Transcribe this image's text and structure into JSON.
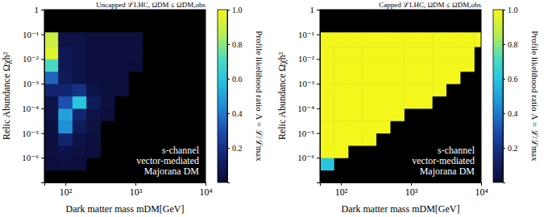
{
  "chart_data": [
    {
      "type": "heatmap",
      "title": "Uncapped ℒLHC, ΩDM ≤ ΩDM,obs",
      "x_label": "Dark matter mass mDM[GeV]",
      "y_label": "Relic Abundance Ωχh²",
      "annotation": [
        "s-channel",
        "vector-mediated",
        "Majorana DM"
      ],
      "log": true,
      "xlim": [
        50,
        10000
      ],
      "ylim": [
        1e-07,
        1
      ],
      "xticks": [
        {
          "value": 100,
          "label": "10²"
        },
        {
          "value": 1000,
          "label": "10³"
        },
        {
          "value": 10000,
          "label": "10⁴"
        }
      ],
      "yticks": [
        {
          "value": 1e-06,
          "label": "10⁻⁶"
        },
        {
          "value": 1e-05,
          "label": "10⁻⁵"
        },
        {
          "value": 0.0001,
          "label": "10⁻⁴"
        },
        {
          "value": 0.001,
          "label": "10⁻³"
        },
        {
          "value": 0.01,
          "label": "10⁻²"
        },
        {
          "value": 0.1,
          "label": "10⁻¹"
        },
        1
      ],
      "x_bins": [
        50,
        79,
        126,
        200,
        316,
        501,
        794,
        1259,
        1995,
        3162,
        5012,
        7943,
        10000
      ],
      "y_bins": [
        1e-07,
        3.16e-07,
        1e-06,
        3.16e-06,
        1e-05,
        3.16e-05,
        0.0001,
        0.000316,
        0.001,
        0.00316,
        0.01,
        0.0316,
        0.12
      ],
      "z": [
        [
          null,
          null,
          null,
          null,
          null,
          null,
          null,
          null,
          null,
          null,
          null,
          null
        ],
        [
          0.02,
          0.03,
          0.02,
          null,
          null,
          null,
          null,
          null,
          null,
          null,
          null,
          null
        ],
        [
          0.03,
          0.05,
          0.03,
          0.02,
          null,
          null,
          null,
          null,
          null,
          null,
          null,
          null
        ],
        [
          0.03,
          0.15,
          0.05,
          0.03,
          null,
          null,
          null,
          null,
          null,
          null,
          null,
          null
        ],
        [
          0.03,
          0.45,
          0.1,
          0.04,
          null,
          null,
          null,
          null,
          null,
          null,
          null,
          null
        ],
        [
          0.05,
          0.5,
          0.15,
          0.05,
          0.02,
          null,
          null,
          null,
          null,
          null,
          null,
          null
        ],
        [
          0.05,
          0.3,
          0.6,
          0.1,
          0.03,
          null,
          null,
          null,
          null,
          null,
          null,
          null
        ],
        [
          0.15,
          0.15,
          0.2,
          0.05,
          0.03,
          0.02,
          null,
          null,
          null,
          null,
          null,
          null
        ],
        [
          0.35,
          0.1,
          0.05,
          0.03,
          0.03,
          0.02,
          null,
          null,
          null,
          null,
          null,
          null
        ],
        [
          0.7,
          0.08,
          0.05,
          0.03,
          0.03,
          0.03,
          0.02,
          null,
          null,
          null,
          null,
          null
        ],
        [
          0.95,
          0.08,
          0.05,
          0.03,
          0.03,
          0.03,
          0.03,
          null,
          null,
          null,
          null,
          null
        ],
        [
          0.9,
          0.05,
          0.05,
          0.03,
          0.03,
          0.03,
          0.03,
          null,
          null,
          null,
          null,
          null
        ]
      ],
      "colorbar": {
        "label": "Profile likelihood ratio Λ = ℒ/ℒmax",
        "range": [
          0,
          1
        ],
        "ticks": [
          0.2,
          0.4,
          0.6,
          0.8,
          {
            "value": 1,
            "label": "1.0"
          }
        ]
      }
    },
    {
      "type": "heatmap",
      "title": "Capped ℒLHC, ΩDM ≤ ΩDM,obs",
      "x_label": "Dark matter mass mDM[GeV]",
      "y_label": "Relic Abundance Ωχh²",
      "annotation": [
        "s-channel",
        "vector-mediated",
        "Majorana DM"
      ],
      "log": true,
      "xlim": [
        50,
        10000
      ],
      "ylim": [
        1e-07,
        1
      ],
      "xticks": [
        {
          "value": 100,
          "label": "10²"
        },
        {
          "value": 1000,
          "label": "10³"
        },
        {
          "value": 10000,
          "label": "10⁴"
        }
      ],
      "yticks": [
        {
          "value": 1e-06,
          "label": "10⁻⁶"
        },
        {
          "value": 1e-05,
          "label": "10⁻⁵"
        },
        {
          "value": 0.0001,
          "label": "10⁻⁴"
        },
        {
          "value": 0.001,
          "label": "10⁻³"
        },
        {
          "value": 0.01,
          "label": "10⁻²"
        },
        {
          "value": 0.1,
          "label": "10⁻¹"
        },
        1
      ],
      "x_bins": [
        50,
        79,
        126,
        200,
        316,
        501,
        794,
        1259,
        1995,
        3162,
        5012,
        7943,
        10000
      ],
      "y_bins": [
        1e-07,
        3.16e-07,
        1e-06,
        3.16e-06,
        1e-05,
        3.16e-05,
        0.0001,
        0.000316,
        0.001,
        0.00316,
        0.01,
        0.0316,
        0.12
      ],
      "z": [
        [
          null,
          null,
          null,
          null,
          null,
          null,
          null,
          null,
          null,
          null,
          null,
          null
        ],
        [
          0.6,
          null,
          null,
          null,
          null,
          null,
          null,
          null,
          null,
          null,
          null,
          null
        ],
        [
          1,
          1,
          null,
          null,
          null,
          null,
          null,
          null,
          null,
          null,
          null,
          null
        ],
        [
          1,
          1,
          1,
          1,
          null,
          null,
          null,
          null,
          null,
          null,
          null,
          null
        ],
        [
          1,
          1,
          1,
          1,
          1,
          null,
          null,
          null,
          null,
          null,
          null,
          null
        ],
        [
          1,
          1,
          1,
          1,
          1,
          1,
          null,
          null,
          null,
          null,
          null,
          null
        ],
        [
          1,
          1,
          1,
          1,
          1,
          1,
          1,
          1,
          null,
          null,
          null,
          null
        ],
        [
          1,
          1,
          1,
          1,
          1,
          1,
          1,
          1,
          1,
          null,
          null,
          null
        ],
        [
          1,
          1,
          1,
          1,
          1,
          1,
          1,
          1,
          1,
          1,
          null,
          null
        ],
        [
          1,
          1,
          1,
          1,
          1,
          1,
          1,
          1,
          1,
          1,
          1,
          null
        ],
        [
          1,
          1,
          1,
          1,
          1,
          1,
          1,
          1,
          1,
          1,
          1,
          null
        ],
        [
          1,
          1,
          1,
          1,
          1,
          1,
          1,
          1,
          1,
          1,
          1,
          1
        ]
      ],
      "colorbar": {
        "label": "Profile likelihood ratio Λ = ℒ/ℒmax",
        "range": [
          0,
          1
        ],
        "ticks": [
          0.2,
          0.4,
          0.6,
          0.8,
          {
            "value": 1,
            "label": "1.0"
          }
        ]
      }
    }
  ]
}
